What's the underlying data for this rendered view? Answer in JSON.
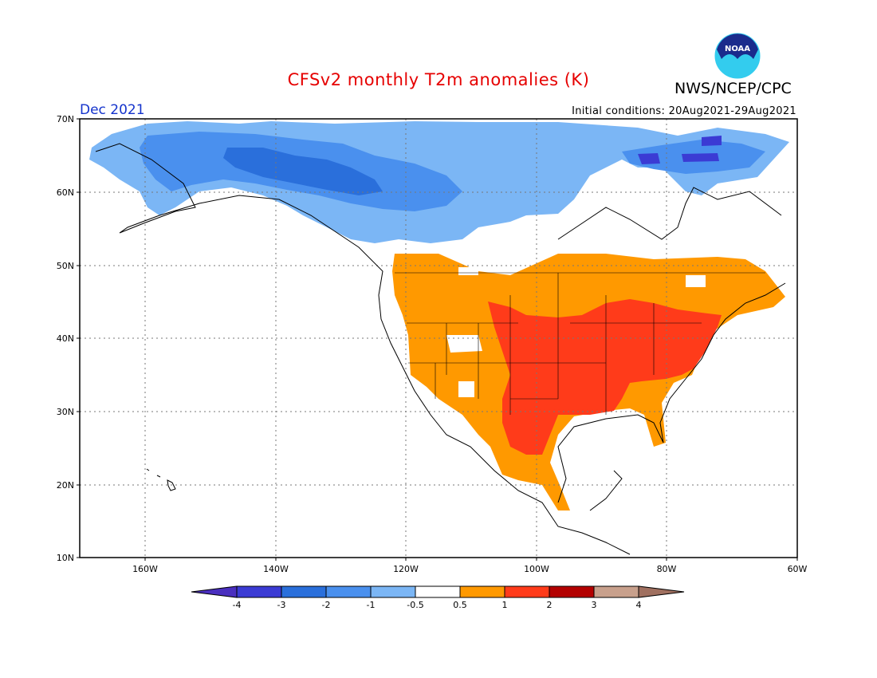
{
  "title": "CFSv2 monthly T2m anomalies (K)",
  "agency": "NWS/NCEP/CPC",
  "logo_text": "NOAA",
  "month": "Dec 2021",
  "initial_conditions": "Initial conditions: 20Aug2021-29Aug2021",
  "map": {
    "lat_labels": [
      "70N",
      "60N",
      "50N",
      "40N",
      "30N",
      "20N",
      "10N"
    ],
    "lon_labels": [
      "160W",
      "140W",
      "120W",
      "100W",
      "80W",
      "60W"
    ],
    "lat_range": [
      10,
      70
    ],
    "lon_range": [
      -170,
      -60
    ],
    "grid": "dotted"
  },
  "colorbar": {
    "labels": [
      "-4",
      "-3",
      "-2",
      "-1",
      "-0.5",
      "0.5",
      "1",
      "2",
      "3",
      "4"
    ],
    "colors": [
      "#4a2fbf",
      "#3b3bd4",
      "#2a6fdb",
      "#4a90ee",
      "#7bb6f5",
      "#ffffff",
      "#ff9900",
      "#ff3b1a",
      "#b30000",
      "#c8a08c",
      "#a07060"
    ]
  }
}
